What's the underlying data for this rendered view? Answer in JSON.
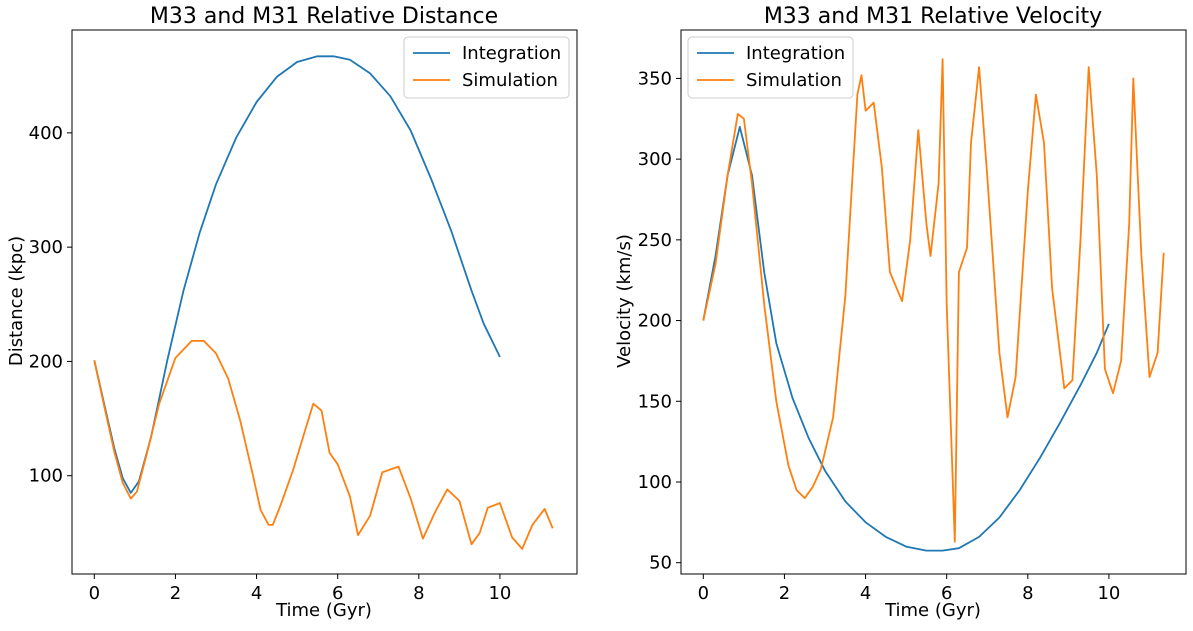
{
  "chart_data": [
    {
      "type": "line",
      "title": "M33 and M31 Relative Distance",
      "xlabel": "Time (Gyr)",
      "ylabel": "Distance (kpc)",
      "xlim": [
        -0.55,
        11.9
      ],
      "ylim": [
        14,
        490
      ],
      "xticks": [
        0,
        2,
        4,
        6,
        8,
        10
      ],
      "yticks": [
        100,
        200,
        300,
        400
      ],
      "grid": false,
      "legend_position": "top-right",
      "series": [
        {
          "name": "Integration",
          "color": "#1f77b4",
          "x": [
            0,
            0.25,
            0.5,
            0.7,
            0.9,
            1.1,
            1.4,
            1.8,
            2.2,
            2.6,
            3.0,
            3.5,
            4.0,
            4.5,
            5.0,
            5.5,
            5.9,
            6.3,
            6.8,
            7.3,
            7.8,
            8.3,
            8.8,
            9.3,
            9.6,
            10.0
          ],
          "y": [
            201,
            162,
            123,
            98,
            85,
            95,
            134,
            201,
            262,
            313,
            355,
            396,
            427,
            449,
            462,
            467,
            467,
            464,
            452,
            432,
            402,
            360,
            314,
            262,
            233,
            204
          ]
        },
        {
          "name": "Simulation",
          "color": "#ff7f0e",
          "x": [
            0,
            0.25,
            0.5,
            0.7,
            0.9,
            1.05,
            1.3,
            1.6,
            2.0,
            2.4,
            2.7,
            3.0,
            3.3,
            3.6,
            3.9,
            4.1,
            4.3,
            4.4,
            4.6,
            4.9,
            5.2,
            5.4,
            5.6,
            5.8,
            6.0,
            6.3,
            6.5,
            6.8,
            7.1,
            7.5,
            7.8,
            8.1,
            8.4,
            8.7,
            9.0,
            9.3,
            9.5,
            9.7,
            10.0,
            10.3,
            10.55,
            10.8,
            11.1,
            11.3
          ],
          "y": [
            201,
            160,
            120,
            94,
            80,
            86,
            120,
            163,
            203,
            218,
            218,
            207,
            185,
            148,
            102,
            70,
            57,
            57,
            75,
            105,
            140,
            163,
            157,
            120,
            110,
            82,
            48,
            65,
            103,
            108,
            80,
            45,
            68,
            88,
            78,
            40,
            50,
            72,
            76,
            46,
            36,
            57,
            71,
            54
          ]
        }
      ]
    },
    {
      "type": "line",
      "title": "M33 and M31 Relative Velocity",
      "xlabel": "Time (Gyr)",
      "ylabel": "Velocity (km/s)",
      "xlim": [
        -0.55,
        11.9
      ],
      "ylim": [
        43,
        380
      ],
      "xticks": [
        0,
        2,
        4,
        6,
        8,
        10
      ],
      "yticks": [
        50,
        100,
        150,
        200,
        250,
        300,
        350
      ],
      "grid": false,
      "legend_position": "top-left",
      "series": [
        {
          "name": "Integration",
          "color": "#1f77b4",
          "x": [
            0,
            0.3,
            0.6,
            0.9,
            1.2,
            1.5,
            1.8,
            2.2,
            2.6,
            3.0,
            3.5,
            4.0,
            4.5,
            5.0,
            5.5,
            5.9,
            6.3,
            6.8,
            7.3,
            7.8,
            8.3,
            8.8,
            9.3,
            9.7,
            10.0
          ],
          "y": [
            200,
            240,
            290,
            320,
            290,
            230,
            186,
            152,
            127,
            107,
            88,
            75,
            66,
            60,
            57.5,
            57.5,
            59,
            66,
            78,
            95,
            115,
            137,
            160,
            180,
            198
          ]
        },
        {
          "name": "Simulation",
          "color": "#ff7f0e",
          "x": [
            0,
            0.3,
            0.6,
            0.85,
            1.0,
            1.2,
            1.5,
            1.8,
            2.1,
            2.3,
            2.5,
            2.7,
            2.9,
            3.2,
            3.5,
            3.8,
            3.9,
            4.0,
            4.2,
            4.4,
            4.6,
            4.9,
            5.1,
            5.3,
            5.5,
            5.6,
            5.8,
            5.9,
            6.0,
            6.2,
            6.3,
            6.5,
            6.6,
            6.8,
            7.0,
            7.3,
            7.5,
            7.7,
            8.0,
            8.2,
            8.4,
            8.6,
            8.9,
            9.1,
            9.3,
            9.5,
            9.7,
            9.9,
            10.1,
            10.3,
            10.5,
            10.6,
            10.8,
            11.0,
            11.2,
            11.35
          ],
          "y": [
            200,
            235,
            290,
            328,
            325,
            285,
            210,
            150,
            110,
            95,
            90,
            97,
            108,
            140,
            215,
            340,
            352,
            330,
            335,
            295,
            230,
            212,
            250,
            318,
            260,
            240,
            285,
            362,
            210,
            63,
            230,
            245,
            310,
            357,
            290,
            180,
            140,
            165,
            280,
            340,
            310,
            220,
            158,
            163,
            250,
            357,
            290,
            170,
            155,
            175,
            260,
            350,
            240,
            165,
            180,
            242
          ]
        }
      ]
    }
  ]
}
